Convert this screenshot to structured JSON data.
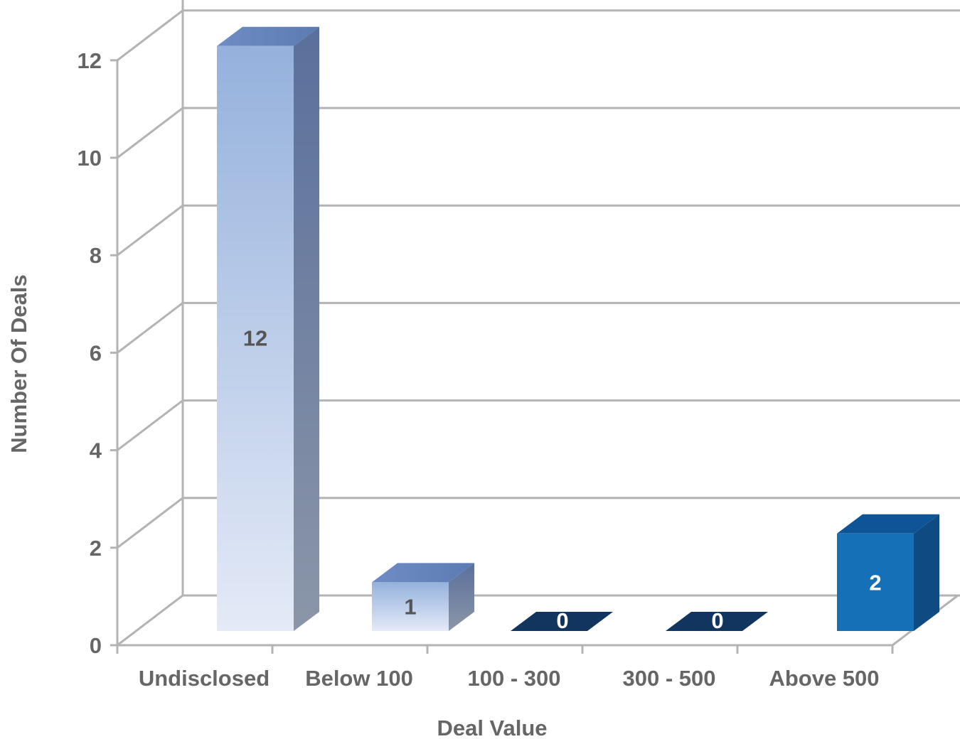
{
  "chart_data": {
    "type": "bar",
    "categories": [
      "Undisclosed",
      "Below 100",
      "100 - 300",
      "300 - 500",
      "Above 500"
    ],
    "values": [
      12,
      1,
      0,
      0,
      2
    ],
    "data_labels": [
      "12",
      "1",
      "0",
      "0",
      "2"
    ],
    "xlabel": "Deal Value",
    "ylabel": "Number Of Deals",
    "ylim": [
      0,
      12
    ],
    "yticks": [
      "0",
      "2",
      "4",
      "6",
      "8",
      "10",
      "12"
    ],
    "grid": true,
    "style": "3d",
    "colors": {
      "bar_light_top": "#95b1dc",
      "bar_light_bottom": "#e4eaf7",
      "bar_zero": "#12355f",
      "bar_highlight": "#1570b8",
      "grid": "#b3b3b3",
      "text": "#666666"
    }
  }
}
